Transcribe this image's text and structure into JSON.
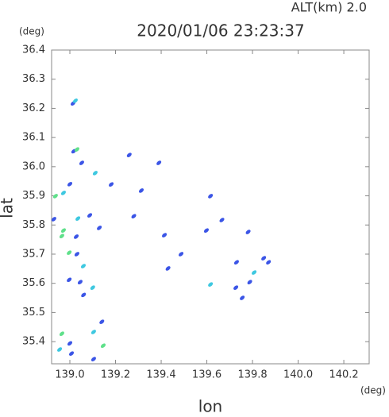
{
  "chart_data": {
    "type": "scatter",
    "header": "ALT(km)  2.0",
    "title": "2020/01/06 23:23:37",
    "y_unit": "(deg)",
    "x_unit": "(deg)",
    "y_label": "lat",
    "x_label": "lon",
    "xlim": [
      138.92,
      140.311
    ],
    "ylim": [
      35.324,
      36.4
    ],
    "xticks": [
      {
        "value": 139.0,
        "label": "139.0"
      },
      {
        "value": 139.2,
        "label": "139.2"
      },
      {
        "value": 139.4,
        "label": "139.4"
      },
      {
        "value": 139.6,
        "label": "139.6"
      },
      {
        "value": 139.8,
        "label": "139.8"
      },
      {
        "value": 140.0,
        "label": "140.0"
      },
      {
        "value": 140.2,
        "label": "140.2"
      }
    ],
    "yticks": [
      {
        "value": 35.4,
        "label": "35.4"
      },
      35.5,
      35.6,
      35.7,
      35.8,
      {
        "value": 35.9,
        "label": "35.9"
      },
      {
        "value": 36.0,
        "label": "36.0"
      },
      36.1,
      36.2,
      36.3,
      36.4
    ],
    "series": [
      {
        "color": "#3b55e6",
        "x": [
          139.014,
          139.017,
          139.052,
          139.0,
          138.93,
          139.028,
          139.087,
          139.129,
          139.031,
          138.997,
          139.045,
          139.06,
          139.14,
          139.0,
          139.007,
          139.104,
          139.181,
          139.26,
          139.313,
          139.39,
          139.28,
          139.414,
          139.43,
          139.487,
          139.616,
          139.598,
          139.666,
          139.727,
          139.755,
          139.73,
          139.788,
          139.849,
          139.781,
          139.87
        ],
        "y": [
          36.217,
          36.053,
          36.013,
          35.94,
          35.82,
          35.76,
          35.833,
          35.79,
          35.7,
          35.612,
          35.604,
          35.56,
          35.468,
          35.394,
          35.359,
          35.34,
          35.939,
          36.04,
          35.918,
          36.013,
          35.83,
          35.765,
          35.651,
          35.7,
          35.899,
          35.781,
          35.817,
          35.585,
          35.55,
          35.672,
          35.604,
          35.686,
          35.776,
          35.672
        ]
      },
      {
        "color": "#3ec8e0",
        "x": [
          139.024,
          138.972,
          139.035,
          139.059,
          139.1,
          139.104,
          138.955,
          139.111,
          139.616,
          139.807
        ],
        "y": [
          36.226,
          35.91,
          35.822,
          35.659,
          35.585,
          35.433,
          35.373,
          35.978,
          35.596,
          35.637
        ]
      },
      {
        "color": "#5fe08a",
        "x": [
          139.031,
          138.937,
          138.972,
          138.965,
          138.997,
          138.965,
          139.146
        ],
        "y": [
          36.059,
          35.899,
          35.781,
          35.762,
          35.705,
          35.427,
          35.386
        ]
      }
    ]
  }
}
